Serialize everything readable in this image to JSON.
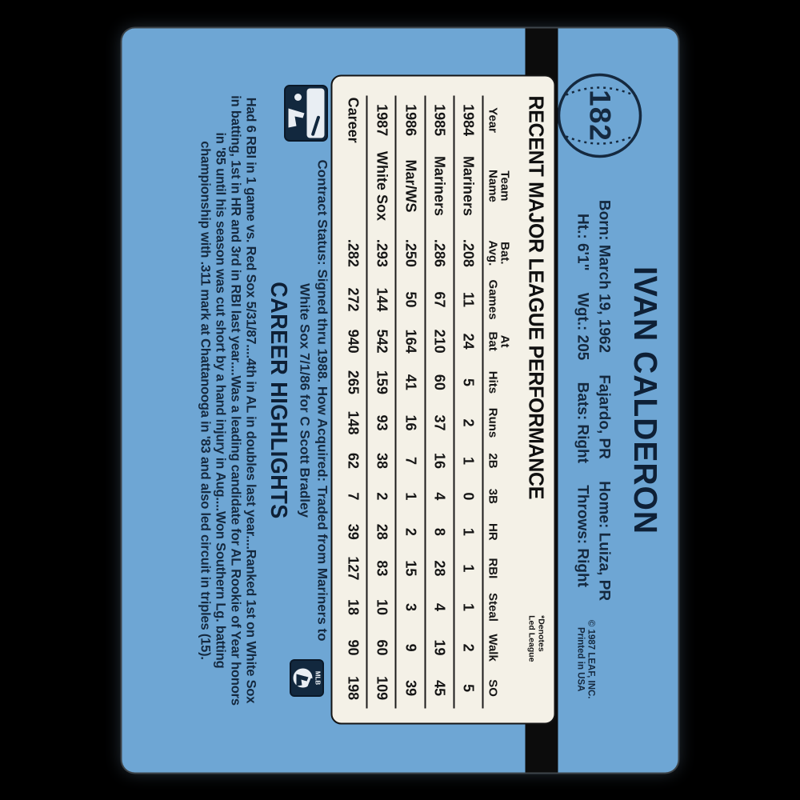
{
  "card_number": "182",
  "player": {
    "name": "IVAN CALDERON",
    "bio1": [
      "Born: March 19, 1962",
      "Fajardo, PR",
      "Home: Luiza, PR"
    ],
    "bio2": [
      "Ht.: 6'1\"",
      "Wgt.: 205",
      "Bats: Right",
      "Throws: Right"
    ]
  },
  "panel": {
    "title": "RECENT MAJOR LEAGUE PERFORMANCE",
    "note": [
      "*Denotes",
      "Led League"
    ],
    "table": {
      "headers": [
        "Year",
        "Team\nName",
        "Bat.\nAvg.",
        "Games",
        "At\nBat",
        "Hits",
        "Runs",
        "2B",
        "3B",
        "HR",
        "RBI",
        "Steal",
        "Walk",
        "SO"
      ],
      "rows": [
        [
          "1984",
          "Mariners",
          ".208",
          "11",
          "24",
          "5",
          "2",
          "1",
          "0",
          "1",
          "1",
          "1",
          "2",
          "5"
        ],
        [
          "1985",
          "Mariners",
          ".286",
          "67",
          "210",
          "60",
          "37",
          "16",
          "4",
          "8",
          "28",
          "4",
          "19",
          "45"
        ],
        [
          "1986",
          "Mar/WS",
          ".250",
          "50",
          "164",
          "41",
          "16",
          "7",
          "1",
          "2",
          "15",
          "3",
          "9",
          "39"
        ],
        [
          "1987",
          "White Sox",
          ".293",
          "144",
          "542",
          "159",
          "93",
          "38",
          "2",
          "28",
          "83",
          "10",
          "60",
          "109"
        ],
        [
          "Career",
          "",
          ".282",
          "272",
          "940",
          "265",
          "148",
          "62",
          "7",
          "39",
          "127",
          "18",
          "90",
          "198"
        ]
      ]
    }
  },
  "contract": {
    "line1": "Contract Status: Signed thru 1988. How Acquired: Traded from Mariners to",
    "line2": "White Sox 7/1/86 for C Scott Bradley"
  },
  "highlights": {
    "title": "CAREER HIGHLIGHTS",
    "lines": [
      "Had 6 RBI in 1 game vs. Red Sox 5/31/87....4th in AL in doubles last year....Ranked 1st on White Sox",
      "in batting, 1st in HR and 3rd in RBI last year....Was a leading candidate for AL Rookie of Year honors",
      "in '85 until his season was cut short by a hand injury in Aug....Won Southern Lg. batting",
      "championship with .311 mark at Chattanooga in '83 and also led circuit in triples (15)."
    ]
  },
  "footer": {
    "copyright1": "© 1987 LEAF, INC.",
    "copyright2": "Printed in USA",
    "mlbpa_label": "MLB"
  },
  "colors": {
    "card_blue": "#6ea6d4",
    "ink_navy": "#15293f",
    "panel_bg": "#f4f1e7",
    "stripe_black": "#0c0c0c"
  }
}
